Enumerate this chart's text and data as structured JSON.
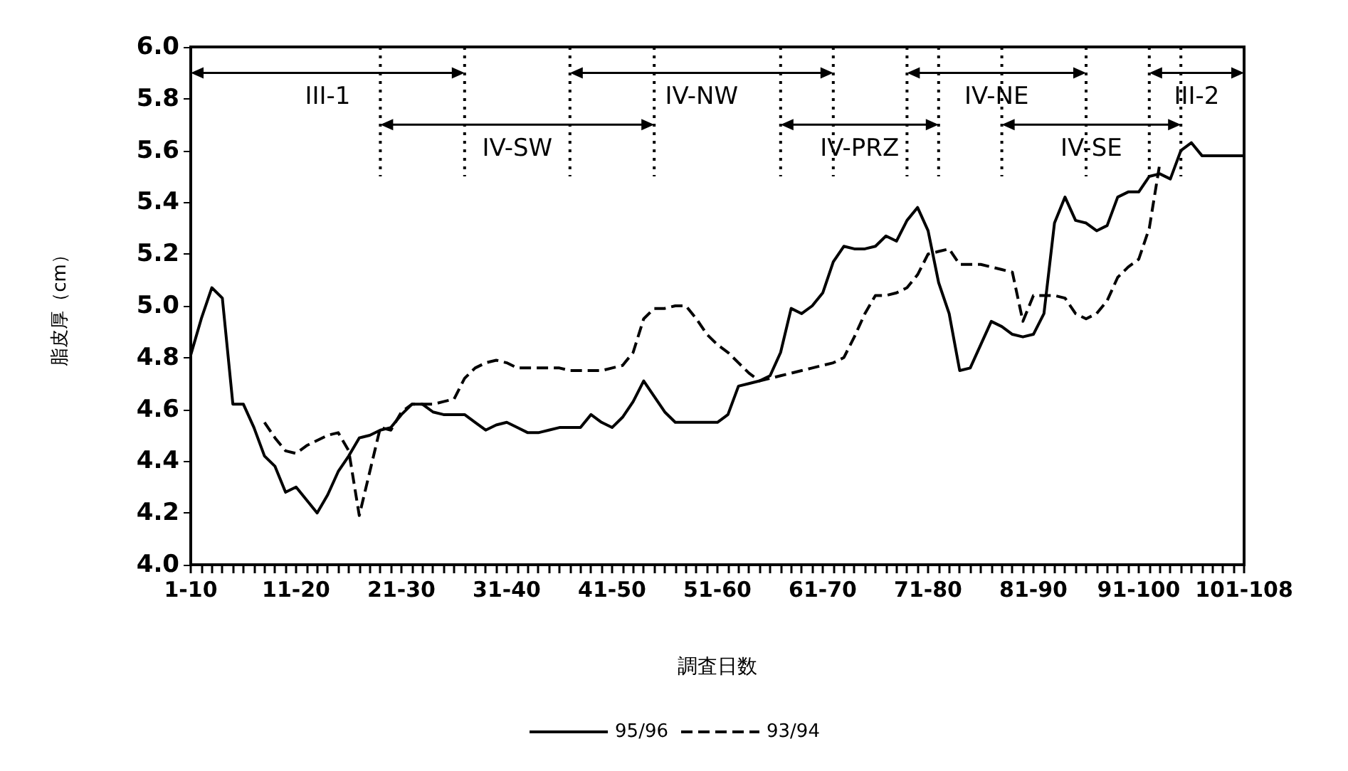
{
  "chart_data": {
    "type": "line",
    "xlabel": "調査日数",
    "ylabel": "脂皮厚（cm）",
    "categories": [
      "1-10",
      null,
      null,
      null,
      null,
      null,
      null,
      null,
      null,
      null,
      "11-20",
      null,
      null,
      null,
      null,
      null,
      null,
      null,
      null,
      null,
      "21-30",
      null,
      null,
      null,
      null,
      null,
      null,
      null,
      null,
      null,
      "31-40",
      null,
      null,
      null,
      null,
      null,
      null,
      null,
      null,
      null,
      "41-50",
      null,
      null,
      null,
      null,
      null,
      null,
      null,
      null,
      null,
      "51-60",
      null,
      null,
      null,
      null,
      null,
      null,
      null,
      null,
      null,
      "61-70",
      null,
      null,
      null,
      null,
      null,
      null,
      null,
      null,
      null,
      "71-80",
      null,
      null,
      null,
      null,
      null,
      null,
      null,
      null,
      null,
      "81-90",
      null,
      null,
      null,
      null,
      null,
      null,
      null,
      null,
      null,
      "91-100",
      null,
      null,
      null,
      null,
      null,
      null,
      null,
      null,
      null,
      "101-108"
    ],
    "ylim": [
      4.0,
      6.0
    ],
    "yticks": [
      {
        "value": 4.0,
        "label": "4.0"
      },
      {
        "value": 4.2,
        "label": "4.2"
      },
      {
        "value": 4.4,
        "label": "4.4"
      },
      {
        "value": 4.6,
        "label": "4.6"
      },
      {
        "value": 4.8,
        "label": "4.8"
      },
      {
        "value": 5.0,
        "label": "5.0"
      },
      {
        "value": 5.2,
        "label": "5.2"
      },
      {
        "value": 5.4,
        "label": "5.4"
      },
      {
        "value": 5.6,
        "label": "5.6"
      },
      {
        "value": 5.8,
        "label": "5.8"
      },
      {
        "value": 6.0,
        "label": "6.0"
      }
    ],
    "grid": false,
    "legend": "bottom",
    "marker": "none",
    "series": [
      {
        "name": "95/96",
        "color": "#000000",
        "line_style": "solid",
        "values": [
          4.81,
          4.95,
          5.07,
          5.03,
          4.62,
          4.62,
          4.53,
          4.42,
          4.38,
          4.28,
          4.3,
          4.25,
          4.2,
          4.27,
          4.36,
          4.42,
          4.49,
          4.5,
          4.52,
          4.53,
          4.58,
          4.62,
          4.62,
          4.59,
          4.58,
          4.58,
          4.58,
          4.55,
          4.52,
          4.54,
          4.55,
          4.53,
          4.51,
          4.51,
          4.52,
          4.53,
          4.53,
          4.53,
          4.58,
          4.55,
          4.53,
          4.57,
          4.63,
          4.71,
          4.65,
          4.59,
          4.55,
          4.55,
          4.55,
          4.55,
          4.55,
          4.58,
          4.69,
          4.7,
          4.71,
          4.73,
          4.82,
          4.99,
          4.97,
          5.0,
          5.05,
          5.17,
          5.23,
          5.22,
          5.22,
          5.23,
          5.27,
          5.25,
          5.33,
          5.38,
          5.29,
          5.09,
          4.97,
          4.75,
          4.76,
          4.85,
          4.94,
          4.92,
          4.89,
          4.88,
          4.89,
          4.97,
          5.32,
          5.42,
          5.33,
          5.32,
          5.29,
          5.31,
          5.42,
          5.44,
          5.44,
          5.5,
          5.51,
          5.49,
          5.6,
          5.63,
          5.58,
          5.58,
          5.58,
          5.58,
          5.58
        ]
      },
      {
        "name": "93/94",
        "color": "#000000",
        "line_style": "dashed",
        "values": [
          null,
          null,
          null,
          null,
          null,
          null,
          null,
          4.55,
          4.49,
          4.44,
          4.43,
          4.46,
          4.48,
          4.5,
          4.51,
          4.44,
          4.19,
          4.36,
          4.53,
          4.52,
          4.59,
          4.62,
          4.62,
          4.62,
          4.63,
          4.64,
          4.72,
          4.76,
          4.78,
          4.79,
          4.78,
          4.76,
          4.76,
          4.76,
          4.76,
          4.76,
          4.75,
          4.75,
          4.75,
          4.75,
          4.76,
          4.77,
          4.82,
          4.95,
          4.99,
          4.99,
          5.0,
          5.0,
          4.95,
          4.89,
          4.85,
          4.82,
          4.78,
          4.74,
          4.71,
          4.72,
          4.73,
          4.74,
          4.75,
          4.76,
          4.77,
          4.78,
          4.8,
          4.88,
          4.97,
          5.04,
          5.04,
          5.05,
          5.07,
          5.12,
          5.2,
          5.21,
          5.22,
          5.16,
          5.16,
          5.16,
          5.15,
          5.14,
          5.13,
          4.94,
          5.04,
          5.04,
          5.04,
          5.03,
          4.97,
          4.95,
          4.97,
          5.02,
          5.11,
          5.15,
          5.18,
          5.3,
          5.55,
          null,
          null,
          null,
          null,
          null,
          null,
          null,
          null
        ]
      }
    ],
    "annotations": [
      "III-1",
      "IV-SW",
      "IV-NW",
      "IV-PRZ",
      "IV-NE",
      "IV-SE",
      "III-2"
    ]
  }
}
